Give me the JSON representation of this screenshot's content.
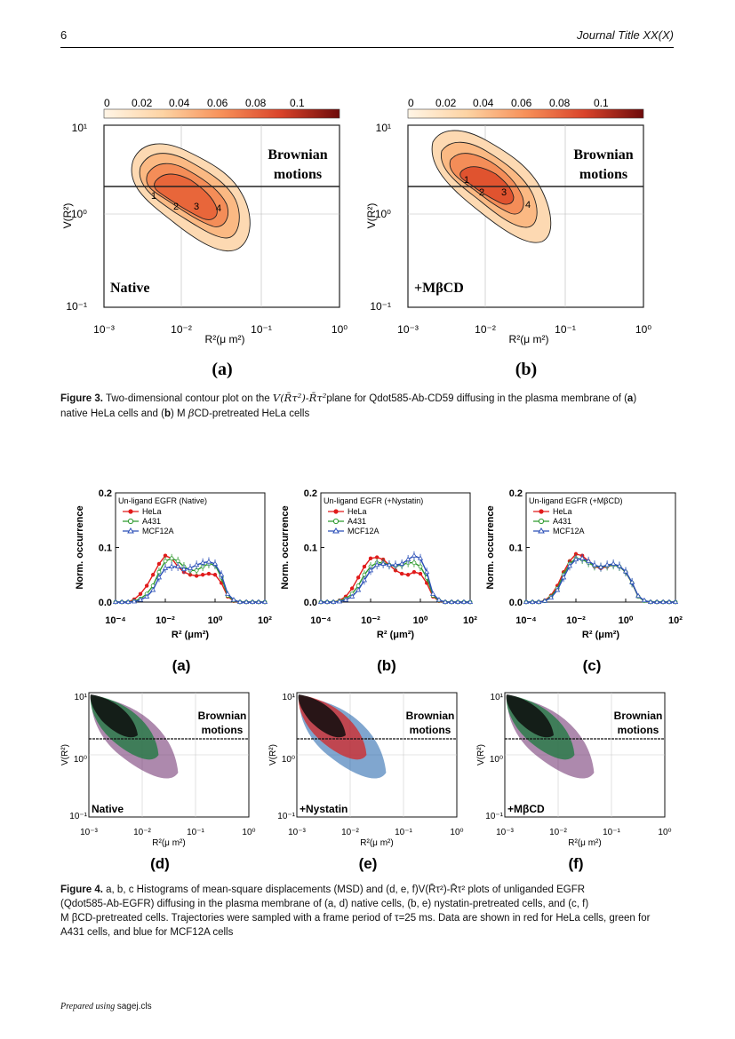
{
  "header": {
    "page_number": "6",
    "journal_title": "Journal Title XX(X)"
  },
  "figure3": {
    "colorbar_ticks": [
      "0",
      "0.02",
      "0.04",
      "0.06",
      "0.08",
      "0.1"
    ],
    "y_label": "V(R²)",
    "x_label": "R²(μ m²)",
    "y_ticks": [
      "10¹",
      "10⁰",
      "10⁻¹"
    ],
    "x_ticks": [
      "10⁻³",
      "10⁻²",
      "10⁻¹",
      "10⁰"
    ],
    "region_label_1": "Brownian",
    "region_label_2": "motions",
    "panels": [
      {
        "panel_label": "(a)",
        "condition": "Native",
        "peaks": [
          "1",
          "2",
          "3",
          "4"
        ]
      },
      {
        "panel_label": "(b)",
        "condition": "+MβCD",
        "peaks": [
          "1",
          "2",
          "3",
          "4"
        ]
      }
    ],
    "caption_label": "Figure 3.",
    "caption_text_1": "Two-dimensional contour plot on the",
    "caption_math": "V(R̄τ²)-R̄τ²",
    "caption_text_2": "plane for Qdot585-Ab-CD59 diffusing in the plasma membrane of (",
    "caption_a": "a",
    "caption_text_3": ")",
    "caption_line2_1": "native HeLa cells and (",
    "caption_b": "b",
    "caption_line2_2": ") M",
    "caption_beta": "β",
    "caption_line2_3": "CD-pretreated HeLa cells"
  },
  "figure4": {
    "hist_y_label": "Norm. occurrence",
    "hist_x_label": "R² (μm²)",
    "hist_y_ticks": [
      "0.2",
      "0.1",
      "0.0"
    ],
    "hist_x_ticks": [
      "10⁻⁴",
      "10⁻²",
      "10⁰",
      "10²"
    ],
    "legend_entries": [
      "HeLa",
      "A431",
      "MCF12A"
    ],
    "series_colors": {
      "HeLa": "#e11b1b",
      "A431": "#2e9a2e",
      "MCF12A": "#2b4fb8"
    },
    "hist_panels": [
      {
        "panel_label": "(a)",
        "title": "Un-ligand EGFR (Native)"
      },
      {
        "panel_label": "(b)",
        "title": "Un-ligand EGFR (+Nystatin)"
      },
      {
        "panel_label": "(c)",
        "title": "Un-ligand EGFR (+MβCD)"
      }
    ],
    "contour_panels": [
      {
        "panel_label": "(d)",
        "condition": "Native"
      },
      {
        "panel_label": "(e)",
        "condition": "+Nystatin"
      },
      {
        "panel_label": "(f)",
        "condition": "+MβCD"
      }
    ],
    "contour_y_label": "V(R²)",
    "contour_x_label": "R²(μ m²)",
    "contour_y_ticks": [
      "10¹",
      "10⁰",
      "10⁻¹"
    ],
    "contour_x_ticks": [
      "10⁻³",
      "10⁻²",
      "10⁻¹",
      "10⁰"
    ],
    "region_label_1": "Brownian",
    "region_label_2": "motions",
    "caption_lines": [
      "a, b, c Histograms of mean-square displacements (MSD) and (d, e, f)V(R̄τ²)-R̄τ² plots of unliganded EGFR",
      "(Qdot585-Ab-EGFR) diffusing in the plasma membrane of (a, d) native cells, (b, e) nystatin-pretreated cells, and (c, f)",
      "M βCD-pretreated cells. Trajectories were sampled with a frame period of τ=25 ms. Data are shown in red for HeLa cells, green for",
      "A431 cells, and blue for MCF12A cells"
    ],
    "caption_label": "Figure 4."
  },
  "chart_data": [
    {
      "type": "line",
      "title": "Un-ligand EGFR (Native)",
      "xlabel": "R² (μm²)",
      "ylabel": "Norm. occurrence",
      "xscale": "log",
      "ylim": [
        0,
        0.2
      ],
      "x": [
        0.0001,
        0.00018,
        0.00032,
        0.00056,
        0.001,
        0.0018,
        0.0032,
        0.0056,
        0.01,
        0.018,
        0.032,
        0.056,
        0.1,
        0.18,
        0.32,
        0.56,
        1,
        1.8,
        3.2,
        5.6,
        10,
        18,
        32,
        56,
        100
      ],
      "series": [
        {
          "name": "HeLa",
          "values": [
            0,
            0,
            0,
            0.005,
            0.015,
            0.03,
            0.05,
            0.07,
            0.085,
            0.08,
            0.065,
            0.055,
            0.05,
            0.048,
            0.05,
            0.052,
            0.05,
            0.035,
            0.01,
            0.002,
            0,
            0,
            0,
            0,
            0
          ]
        },
        {
          "name": "A431",
          "values": [
            0,
            0,
            0,
            0.002,
            0.006,
            0.015,
            0.03,
            0.055,
            0.075,
            0.08,
            0.075,
            0.065,
            0.058,
            0.058,
            0.065,
            0.07,
            0.068,
            0.045,
            0.012,
            0.003,
            0,
            0,
            0,
            0,
            0
          ]
        },
        {
          "name": "MCF12A",
          "values": [
            0,
            0,
            0,
            0.001,
            0.004,
            0.01,
            0.022,
            0.045,
            0.062,
            0.065,
            0.065,
            0.06,
            0.062,
            0.068,
            0.072,
            0.074,
            0.07,
            0.05,
            0.015,
            0.004,
            0,
            0,
            0,
            0,
            0
          ]
        }
      ]
    },
    {
      "type": "line",
      "title": "Un-ligand EGFR (+Nystatin)",
      "xlabel": "R² (μm²)",
      "ylabel": "Norm. occurrence",
      "xscale": "log",
      "ylim": [
        0,
        0.2
      ],
      "x": [
        0.0001,
        0.00018,
        0.00032,
        0.00056,
        0.001,
        0.0018,
        0.0032,
        0.0056,
        0.01,
        0.018,
        0.032,
        0.056,
        0.1,
        0.18,
        0.32,
        0.56,
        1,
        1.8,
        3.2,
        5.6,
        10,
        18,
        32,
        56,
        100
      ],
      "series": [
        {
          "name": "HeLa",
          "values": [
            0,
            0,
            0,
            0.003,
            0.01,
            0.025,
            0.045,
            0.065,
            0.08,
            0.082,
            0.078,
            0.068,
            0.058,
            0.052,
            0.05,
            0.055,
            0.052,
            0.035,
            0.01,
            0.002,
            0,
            0,
            0,
            0,
            0
          ]
        },
        {
          "name": "A431",
          "values": [
            0,
            0,
            0,
            0.002,
            0.006,
            0.015,
            0.03,
            0.05,
            0.065,
            0.072,
            0.072,
            0.068,
            0.066,
            0.068,
            0.072,
            0.072,
            0.065,
            0.045,
            0.012,
            0.003,
            0,
            0,
            0,
            0,
            0
          ]
        },
        {
          "name": "MCF12A",
          "values": [
            0,
            0,
            0,
            0.001,
            0.004,
            0.01,
            0.022,
            0.04,
            0.058,
            0.068,
            0.07,
            0.068,
            0.068,
            0.07,
            0.078,
            0.085,
            0.08,
            0.055,
            0.015,
            0.004,
            0,
            0,
            0,
            0,
            0
          ]
        }
      ]
    },
    {
      "type": "line",
      "title": "Un-ligand EGFR (+MβCD)",
      "xlabel": "R² (μm²)",
      "ylabel": "Norm. occurrence",
      "xscale": "log",
      "ylim": [
        0,
        0.2
      ],
      "x": [
        0.0001,
        0.00018,
        0.00032,
        0.00056,
        0.001,
        0.0018,
        0.0032,
        0.0056,
        0.01,
        0.018,
        0.032,
        0.056,
        0.1,
        0.18,
        0.32,
        0.56,
        1,
        1.8,
        3.2,
        5.6,
        10,
        18,
        32,
        56,
        100
      ],
      "series": [
        {
          "name": "HeLa",
          "values": [
            0,
            0,
            0,
            0.003,
            0.012,
            0.03,
            0.055,
            0.075,
            0.088,
            0.085,
            0.075,
            0.065,
            0.062,
            0.065,
            0.068,
            0.065,
            0.055,
            0.035,
            0.01,
            0.002,
            0,
            0,
            0,
            0,
            0
          ]
        },
        {
          "name": "A431",
          "values": [
            0,
            0,
            0,
            0.002,
            0.01,
            0.025,
            0.05,
            0.07,
            0.08,
            0.078,
            0.072,
            0.066,
            0.064,
            0.066,
            0.068,
            0.065,
            0.055,
            0.035,
            0.01,
            0.002,
            0,
            0,
            0,
            0,
            0
          ]
        },
        {
          "name": "MCF12A",
          "values": [
            0,
            0,
            0,
            0.002,
            0.008,
            0.022,
            0.045,
            0.066,
            0.078,
            0.08,
            0.075,
            0.068,
            0.064,
            0.068,
            0.07,
            0.066,
            0.056,
            0.036,
            0.011,
            0.003,
            0,
            0,
            0,
            0,
            0
          ]
        }
      ]
    }
  ]
}
